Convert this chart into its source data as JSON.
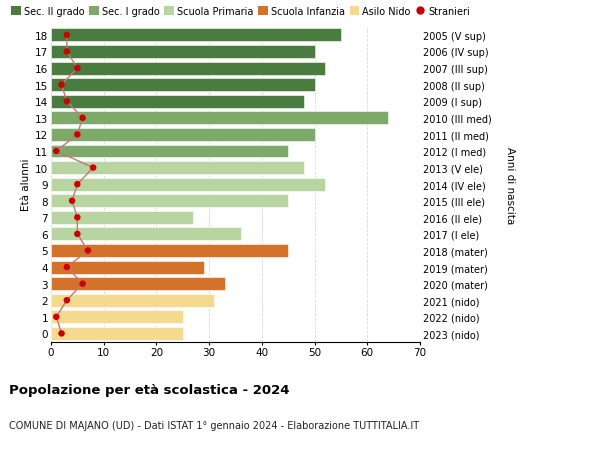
{
  "ages": [
    18,
    17,
    16,
    15,
    14,
    13,
    12,
    11,
    10,
    9,
    8,
    7,
    6,
    5,
    4,
    3,
    2,
    1,
    0
  ],
  "years": [
    "2005 (V sup)",
    "2006 (IV sup)",
    "2007 (III sup)",
    "2008 (II sup)",
    "2009 (I sup)",
    "2010 (III med)",
    "2011 (II med)",
    "2012 (I med)",
    "2013 (V ele)",
    "2014 (IV ele)",
    "2015 (III ele)",
    "2016 (II ele)",
    "2017 (I ele)",
    "2018 (mater)",
    "2019 (mater)",
    "2020 (mater)",
    "2021 (nido)",
    "2022 (nido)",
    "2023 (nido)"
  ],
  "bar_values": [
    55,
    50,
    52,
    50,
    48,
    64,
    50,
    45,
    48,
    52,
    45,
    27,
    36,
    45,
    29,
    33,
    31,
    25,
    25
  ],
  "stranieri": [
    3,
    3,
    5,
    2,
    3,
    6,
    5,
    1,
    8,
    5,
    4,
    5,
    5,
    7,
    3,
    6,
    3,
    1,
    2
  ],
  "bar_colors": [
    "#4a7c3f",
    "#4a7c3f",
    "#4a7c3f",
    "#4a7c3f",
    "#4a7c3f",
    "#7daa6a",
    "#7daa6a",
    "#7daa6a",
    "#b8d4a0",
    "#b8d4a0",
    "#b8d4a0",
    "#b8d4a0",
    "#b8d4a0",
    "#d4712a",
    "#d4712a",
    "#d4712a",
    "#f5d98e",
    "#f5d98e",
    "#f5d98e"
  ],
  "legend_labels": [
    "Sec. II grado",
    "Sec. I grado",
    "Scuola Primaria",
    "Scuola Infanzia",
    "Asilo Nido",
    "Stranieri"
  ],
  "legend_colors": [
    "#4a7c3f",
    "#7daa6a",
    "#b8d4a0",
    "#d4712a",
    "#f5d98e",
    "#cc0000"
  ],
  "stranieri_dot_color": "#cc0000",
  "stranieri_line_color": "#c07878",
  "ylabel_left": "Età alunni",
  "ylabel_right": "Anni di nascita",
  "title": "Popolazione per età scolastica - 2024",
  "subtitle": "COMUNE DI MAJANO (UD) - Dati ISTAT 1° gennaio 2024 - Elaborazione TUTTITALIA.IT",
  "xlim": [
    0,
    70
  ],
  "xticks": [
    0,
    10,
    20,
    30,
    40,
    50,
    60,
    70
  ],
  "background_color": "#ffffff",
  "grid_color": "#d8d8d8"
}
